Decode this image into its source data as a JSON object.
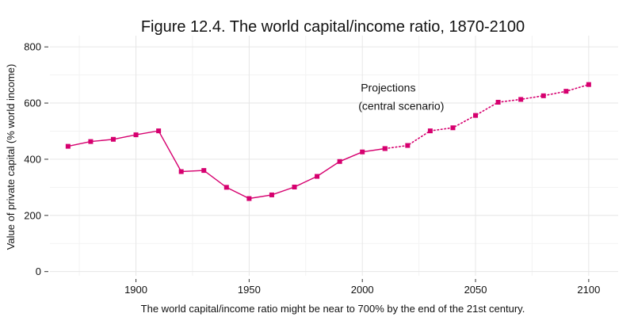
{
  "chart_data": {
    "type": "line",
    "title": "Figure 12.4. The world capital/income ratio, 1870-2100",
    "xlabel": "The world capital/income ratio might be near to 700% by the end of the 21st century.",
    "ylabel": "Value of private capital (% world income)",
    "xlim": [
      1862,
      2113
    ],
    "ylim": [
      -15,
      840
    ],
    "x_ticks": [
      1900,
      1950,
      2000,
      2050,
      2100
    ],
    "y_ticks": [
      0,
      200,
      400,
      600,
      800
    ],
    "grid": true,
    "annotation": {
      "line1": "Projections",
      "line2": "(central scenario)",
      "x": 2000,
      "y": 650
    },
    "series": [
      {
        "style": "solid",
        "color": "#d6006f",
        "x": [
          1870,
          1880,
          1890,
          1900,
          1910,
          1920,
          1930,
          1940,
          1950,
          1960,
          1970,
          1980,
          1990,
          2000,
          2010
        ],
        "y": [
          446,
          463,
          471,
          487,
          501,
          356,
          360,
          300,
          260,
          273,
          301,
          339,
          392,
          426,
          438
        ]
      },
      {
        "style": "dotted",
        "color": "#d6006f",
        "x": [
          2010,
          2020,
          2030,
          2040,
          2050,
          2060,
          2070,
          2080,
          2090,
          2100
        ],
        "y": [
          438,
          449,
          501,
          512,
          556,
          603,
          613,
          626,
          642,
          666
        ]
      }
    ]
  }
}
